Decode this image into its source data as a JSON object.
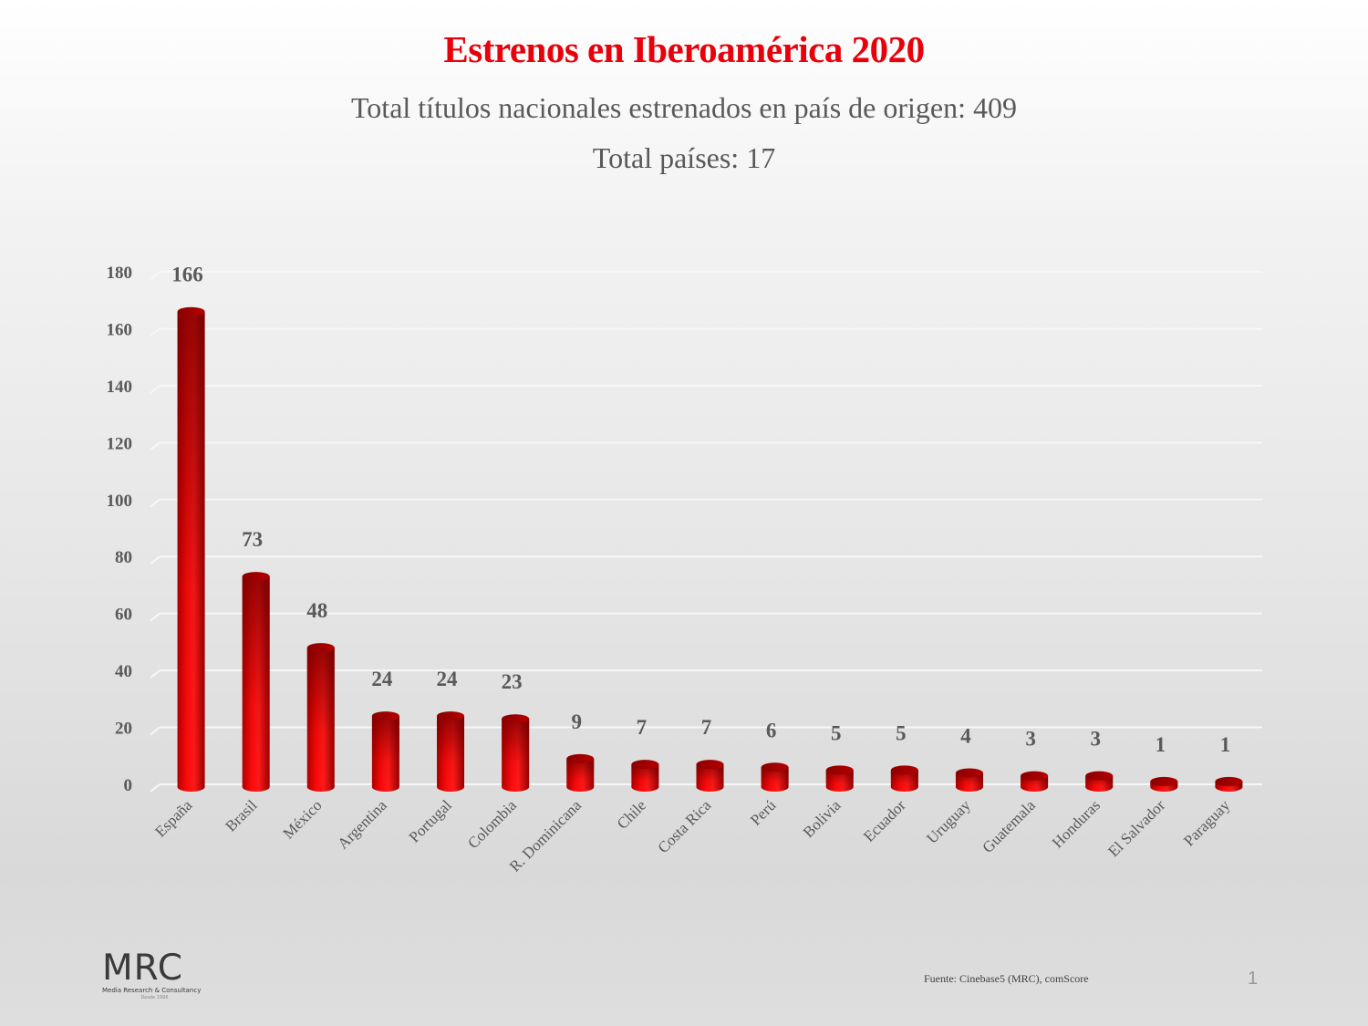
{
  "header": {
    "title": "Estrenos en Iberoamérica 2020",
    "subtitle_line1": "Total títulos nacionales estrenados en país de origen: 409",
    "subtitle_line2": "Total países: 17"
  },
  "chart_data": {
    "type": "bar",
    "title": "Estrenos en Iberoamérica 2020",
    "subtitle": "Total títulos nacionales estrenados en país de origen: 409",
    "xlabel": "",
    "ylabel": "",
    "categories": [
      "España",
      "Brasil",
      "México",
      "Argentina",
      "Portugal",
      "Colombia",
      "R. Dominicana",
      "Chile",
      "Costa Rica",
      "Perú",
      "Bolivia",
      "Ecuador",
      "Uruguay",
      "Guatemala",
      "Honduras",
      "El Salvador",
      "Paraguay"
    ],
    "values": [
      166,
      73,
      48,
      24,
      24,
      23,
      9,
      7,
      7,
      6,
      5,
      5,
      4,
      3,
      3,
      1,
      1
    ],
    "ylim": [
      0,
      180
    ],
    "yticks": [
      0,
      20,
      40,
      60,
      80,
      100,
      120,
      140,
      160,
      180
    ],
    "grid": true,
    "legend": "none",
    "data_labels": true,
    "bar_style": "3d-cylinder",
    "bar_color": "#ff0000",
    "bar_shadow_color": "#8b0000"
  },
  "footer": {
    "logo_text": "MRC",
    "logo_subtitle": "Media Research & Consultancy",
    "logo_since": "Desde 1996",
    "source": "Fuente: Cinebase5 (MRC), comScore",
    "page_number": "1"
  }
}
